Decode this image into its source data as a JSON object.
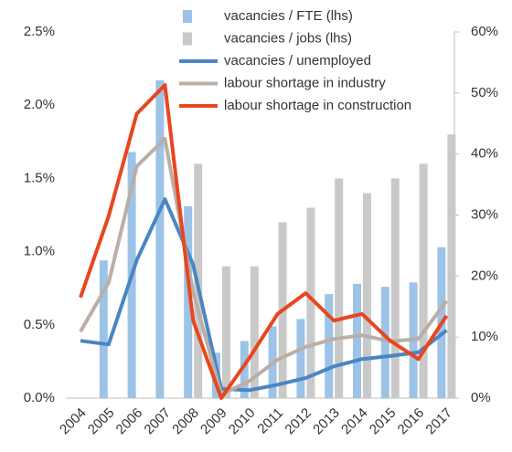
{
  "chart_data": {
    "type": "combo",
    "categories": [
      "2004",
      "2005",
      "2006",
      "2007",
      "2008",
      "2009",
      "2010",
      "2011",
      "2012",
      "2013",
      "2014",
      "2015",
      "2016",
      "2017"
    ],
    "series": [
      {
        "name": "vacancies / FTE (lhs)",
        "type": "bar",
        "color": "#9dc3e6",
        "values": [
          null,
          0.94,
          1.68,
          2.17,
          1.31,
          0.31,
          0.39,
          0.49,
          0.54,
          0.71,
          0.78,
          0.76,
          0.79,
          1.03
        ]
      },
      {
        "name": "vacancies / jobs (lhs)",
        "type": "bar",
        "color": "#c9c9c9",
        "values": [
          null,
          null,
          null,
          null,
          1.6,
          0.9,
          0.9,
          1.2,
          1.3,
          1.5,
          1.4,
          1.5,
          1.6,
          1.8
        ]
      },
      {
        "name": "vacancies / unemployed",
        "type": "line",
        "axis": "y2",
        "color": "#4a86c5",
        "values": [
          9.4,
          8.8,
          22.6,
          32.6,
          21.9,
          1.5,
          1.3,
          2.2,
          3.3,
          5.2,
          6.4,
          6.9,
          7.5,
          11.1
        ]
      },
      {
        "name": "labour shortage in industry",
        "type": "line",
        "axis": "y2",
        "color": "#bbaea6",
        "values": [
          10.9,
          18.9,
          38.0,
          42.5,
          17.4,
          0.6,
          2.8,
          6.3,
          8.4,
          9.7,
          10.3,
          9.3,
          9.7,
          15.9
        ]
      },
      {
        "name": "labour shortage in construction",
        "type": "line",
        "axis": "y2",
        "color": "#e8461f",
        "values": [
          16.5,
          29.8,
          46.6,
          51.3,
          12.7,
          0.0,
          6.6,
          13.8,
          17.2,
          12.7,
          13.8,
          9.4,
          6.4,
          13.5
        ]
      }
    ],
    "ylim": [
      0,
      2.5
    ],
    "yticks": [
      {
        "value": 0,
        "label": "0.0%"
      },
      {
        "value": 0.5,
        "label": "0.5%"
      },
      {
        "value": 1,
        "label": "1.0%"
      },
      {
        "value": 1.5,
        "label": "1.5%"
      },
      {
        "value": 2,
        "label": "2.0%"
      },
      {
        "value": 2.5,
        "label": "2.5%"
      }
    ],
    "y2lim": [
      0,
      60
    ],
    "y2ticks": [
      {
        "value": 0,
        "label": "0%"
      },
      {
        "value": 10,
        "label": "10%"
      },
      {
        "value": 20,
        "label": "20%"
      },
      {
        "value": 30,
        "label": "30%"
      },
      {
        "value": 40,
        "label": "40%"
      },
      {
        "value": 50,
        "label": "50%"
      },
      {
        "value": 60,
        "label": "60%"
      }
    ],
    "legend": "top-right"
  }
}
